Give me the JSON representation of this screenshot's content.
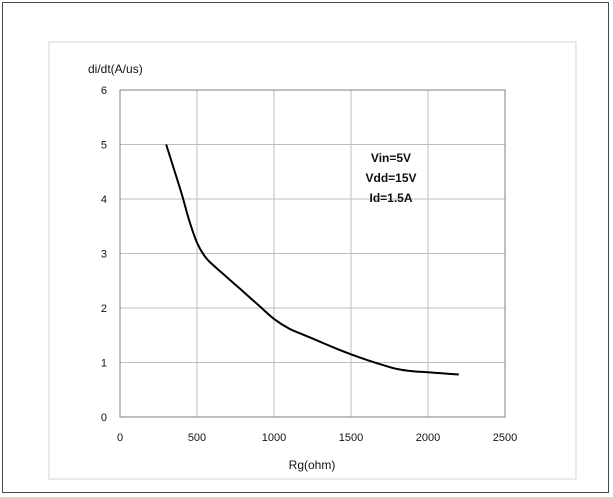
{
  "chart_data": {
    "type": "line",
    "title": "",
    "xlabel": "Rg(ohm)",
    "ylabel": "di/dt(A/us)",
    "xlim": [
      0,
      2500
    ],
    "ylim": [
      0,
      6
    ],
    "xticks": [
      0,
      500,
      1000,
      1500,
      2000,
      2500
    ],
    "yticks": [
      0,
      1,
      2,
      3,
      4,
      5,
      6
    ],
    "xtick_labels": [
      "0",
      "500",
      "1000",
      "1500",
      "2000",
      "2500"
    ],
    "ytick_labels": [
      "0",
      "1",
      "2",
      "3",
      "4",
      "5",
      "6"
    ],
    "grid": true,
    "annotations": [
      "Vin=5V",
      "Vdd=15V",
      "Id=1.5A"
    ],
    "series": [
      {
        "x": [
          300,
          350,
          400,
          450,
          500,
          550,
          600,
          700,
          800,
          900,
          1000,
          1100,
          1200,
          1300,
          1400,
          1500,
          1600,
          1700,
          1800,
          1900,
          2000,
          2100,
          2200
        ],
        "y": [
          5.0,
          4.55,
          4.1,
          3.6,
          3.2,
          2.95,
          2.8,
          2.55,
          2.3,
          2.05,
          1.8,
          1.62,
          1.5,
          1.38,
          1.26,
          1.15,
          1.05,
          0.96,
          0.88,
          0.84,
          0.82,
          0.8,
          0.78
        ],
        "color": "#000000"
      }
    ]
  }
}
